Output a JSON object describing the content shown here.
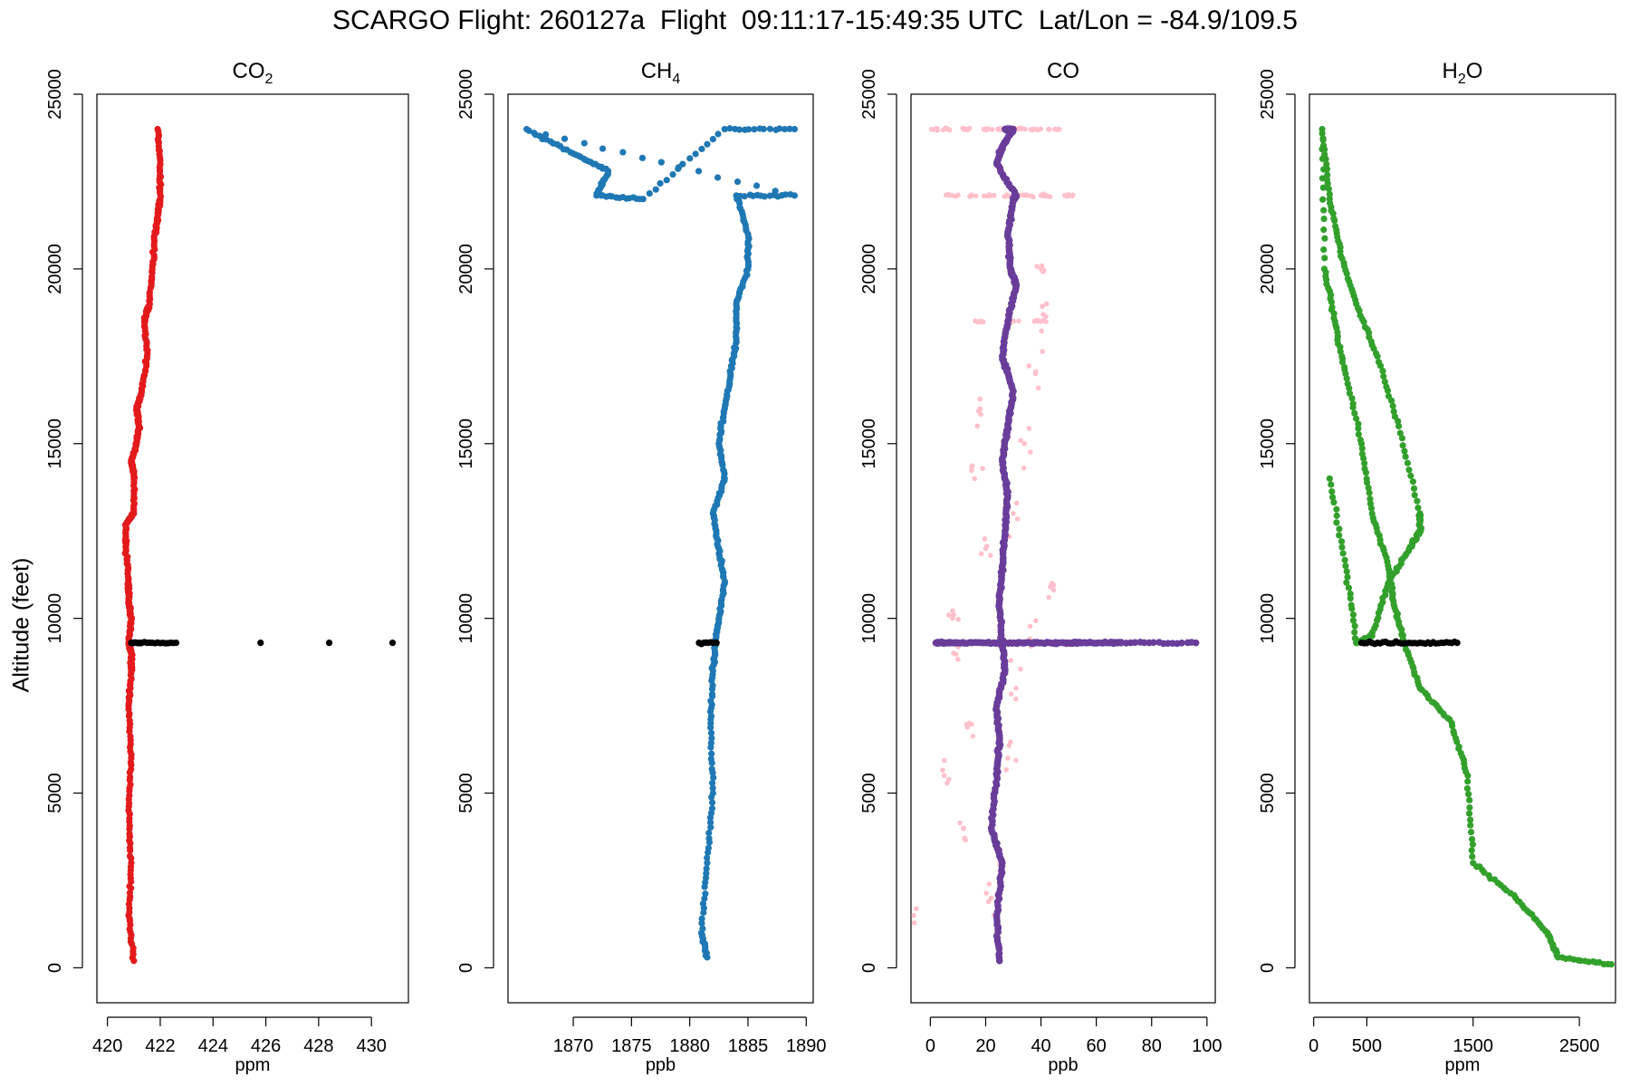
{
  "title": "SCARGO Flight: 260127a  Flight  09:11:17-15:49:35 UTC  Lat/Lon = -84.9/109.5",
  "ylabel": "Altitude (feet)",
  "colors": {
    "co2": "#e31a1c",
    "ch4": "#1f78b4",
    "co_raw": "#ffc0cb",
    "co_smooth": "#6a3d9a",
    "h2o": "#33a02c",
    "black": "#000000"
  },
  "chart_data": [
    {
      "type": "scatter",
      "title": "CO2",
      "title_main": "CO",
      "title_sub": "2",
      "xlabel": "ppm",
      "xlim": [
        419.6,
        431.4
      ],
      "ylim": [
        -1000,
        25000
      ],
      "xticks": [
        420,
        422,
        424,
        426,
        428,
        430
      ],
      "yticks": [
        0,
        5000,
        10000,
        15000,
        20000,
        25000
      ],
      "series": [
        {
          "color": "red",
          "x": [
            421.0,
            420.8,
            420.9,
            420.8,
            420.9,
            420.8,
            420.9,
            420.9,
            420.8,
            420.9,
            420.8,
            420.8,
            420.7,
            420.7,
            421.0,
            421.0,
            420.9,
            421.1,
            421.2,
            421.1,
            421.3,
            421.5,
            421.4,
            421.6,
            421.7,
            421.8,
            421.9,
            422.0,
            422.0,
            421.9
          ],
          "y": [
            200,
            1500,
            3000,
            4500,
            6000,
            7500,
            8500,
            9000,
            9300,
            10000,
            10500,
            11000,
            12000,
            12700,
            13000,
            14000,
            14500,
            15000,
            15500,
            16000,
            16500,
            17500,
            18500,
            19000,
            20000,
            21000,
            21500,
            22000,
            23000,
            24000
          ]
        },
        {
          "color": "black",
          "x": [
            420.9,
            421.0,
            421.1,
            421.2,
            421.3,
            421.5,
            421.7,
            422.6,
            425.8,
            428.4,
            430.8
          ],
          "y": [
            9300,
            9300,
            9300,
            9300,
            9300,
            9300,
            9300,
            9300,
            9300,
            9300,
            9300
          ]
        }
      ]
    },
    {
      "type": "scatter",
      "title": "CH4",
      "title_main": "CH",
      "title_sub": "4",
      "xlabel": "ppb",
      "xlim": [
        1864.4,
        1890.6
      ],
      "ylim": [
        -1000,
        25000
      ],
      "xticks": [
        1870,
        1875,
        1880,
        1885,
        1890
      ],
      "yticks": [
        0,
        5000,
        10000,
        15000,
        20000,
        25000
      ],
      "series": [
        {
          "color": "blue",
          "x": [
            1881.5,
            1881.0,
            1881.5,
            1882.0,
            1881.8,
            1882.0,
            1882.2,
            1882.5,
            1883.0,
            1882.5,
            1882.0,
            1883.0,
            1882.5,
            1883.0,
            1883.5,
            1884.0,
            1884.0,
            1885.0,
            1885.0,
            1884.0,
            1889.0,
            1866.0,
            1870.0,
            1873.0,
            1872.0,
            1876.0,
            1883.0,
            1889.0
          ],
          "y": [
            300,
            1000,
            3000,
            5000,
            7000,
            8500,
            9300,
            10000,
            11000,
            12000,
            13000,
            14000,
            15000,
            16000,
            17000,
            18000,
            19000,
            20000,
            21000,
            22100,
            22100,
            24000,
            23300,
            22800,
            22100,
            22000,
            24000,
            24000
          ]
        },
        {
          "color": "black",
          "x": [
            1880.8,
            1881.2,
            1881.6,
            1882.0,
            1882.3
          ],
          "y": [
            9300,
            9300,
            9300,
            9300,
            9300
          ]
        }
      ]
    },
    {
      "type": "scatter",
      "title": "CO",
      "title_main": "CO",
      "title_sub": "",
      "xlabel": "ppb",
      "xlim": [
        -7,
        103
      ],
      "ylim": [
        -1000,
        25000
      ],
      "xticks": [
        0,
        20,
        40,
        60,
        80,
        100
      ],
      "yticks": [
        0,
        5000,
        10000,
        15000,
        20000,
        25000
      ],
      "series": [
        {
          "color": "pink",
          "x": [
            2,
            5,
            8,
            12,
            15,
            18,
            20,
            22,
            25,
            28,
            30,
            32,
            35,
            38,
            40,
            42,
            45,
            50,
            -6,
            10,
            36,
            18,
            30,
            5,
            44,
            14,
            26,
            40,
            8,
            34,
            20,
            28,
            12,
            38,
            22,
            31,
            16,
            42
          ],
          "y": [
            24000,
            24000,
            22100,
            24000,
            22100,
            18500,
            24000,
            22100,
            24000,
            22100,
            18500,
            24000,
            22100,
            24000,
            18500,
            22100,
            24000,
            22100,
            1500,
            9300,
            9300,
            16000,
            13000,
            5500,
            11000,
            7000,
            3000,
            20000,
            10000,
            15000,
            12000,
            6000,
            4000,
            17000,
            2000,
            8000,
            14000,
            19000
          ]
        },
        {
          "color": "purple",
          "x": [
            25,
            24,
            26,
            22,
            24,
            25,
            24,
            27,
            26,
            25,
            26,
            27,
            28,
            26,
            28,
            30,
            26,
            28,
            31,
            29,
            28,
            30,
            31,
            24,
            26,
            30,
            27
          ],
          "y": [
            200,
            1500,
            3000,
            4000,
            5500,
            6500,
            7500,
            8500,
            9300,
            10500,
            11500,
            12500,
            13500,
            14500,
            15500,
            16500,
            17500,
            18500,
            19500,
            20000,
            21000,
            22000,
            22100,
            23000,
            23500,
            24000,
            24000
          ]
        },
        {
          "color": "purple",
          "x": [
            2,
            5,
            10,
            20,
            30,
            40,
            50,
            55,
            66,
            69,
            96
          ],
          "y": [
            9300,
            9300,
            9300,
            9300,
            9300,
            9300,
            9300,
            9300,
            9300,
            9300,
            9300
          ]
        }
      ]
    },
    {
      "type": "scatter",
      "title": "H2O",
      "title_main": "H",
      "title_sub": "2",
      "title_tail": "O",
      "xlabel": "ppm",
      "xlim": [
        -40,
        2840
      ],
      "ylim": [
        -1000,
        25000
      ],
      "xticks": [
        0,
        500,
        1500,
        2500
      ],
      "yticks": [
        0,
        5000,
        10000,
        15000,
        20000,
        25000
      ],
      "series": [
        {
          "color": "green",
          "x": [
            2800,
            2300,
            2200,
            1900,
            1500,
            1450,
            1300,
            1000,
            850,
            750,
            700,
            550,
            450,
            300,
            200,
            100,
            80,
            150,
            250,
            400,
            600,
            800,
            1000,
            1000,
            900,
            700,
            550,
            400,
            300,
            150
          ],
          "y": [
            100,
            300,
            1000,
            2000,
            3000,
            5500,
            7000,
            8000,
            9300,
            10500,
            11500,
            13000,
            15000,
            17000,
            18500,
            20000,
            24000,
            22000,
            20500,
            19000,
            17500,
            15500,
            13000,
            12500,
            12000,
            11000,
            9500,
            9300,
            11500,
            14000
          ]
        },
        {
          "color": "black",
          "x": [
            450,
            600,
            800,
            1000,
            1200,
            1350
          ],
          "y": [
            9300,
            9300,
            9300,
            9300,
            9300,
            9300
          ]
        }
      ]
    }
  ]
}
